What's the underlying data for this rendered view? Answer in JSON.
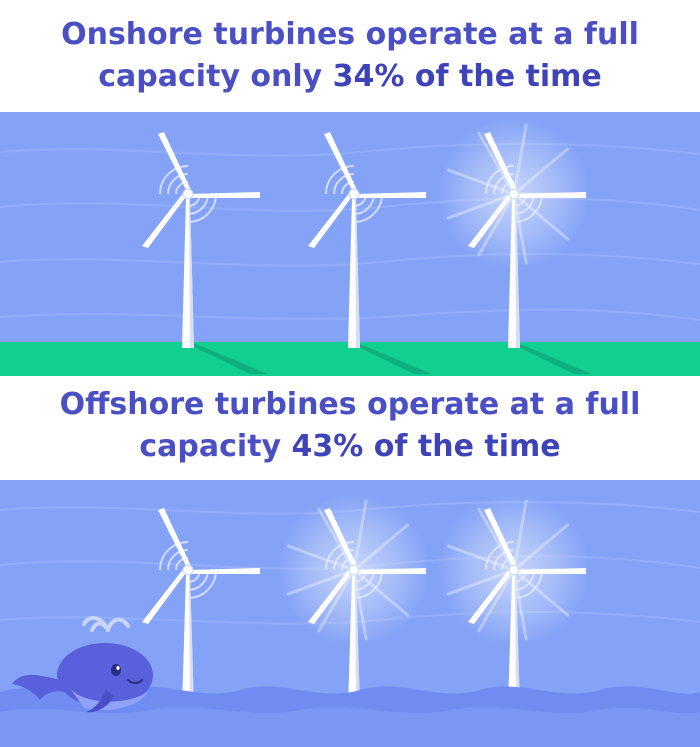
{
  "onshore": {
    "heading_before": "Onshore turbines operate at a full capacity only ",
    "stat": "34% of the time",
    "turbines_running": 1,
    "turbines_total": 3
  },
  "offshore": {
    "heading_before": "Offshore turbines operate at a full capacity ",
    "stat": "43% of the time",
    "turbines_running": 2,
    "turbines_total": 3
  },
  "colors": {
    "heading": "#4b4fc4",
    "sky": "#7f9ff5",
    "ground": "#11cf8f",
    "sea": "#6f8df0",
    "turbine": "#ffffff",
    "whale": "#5a5fdc"
  }
}
